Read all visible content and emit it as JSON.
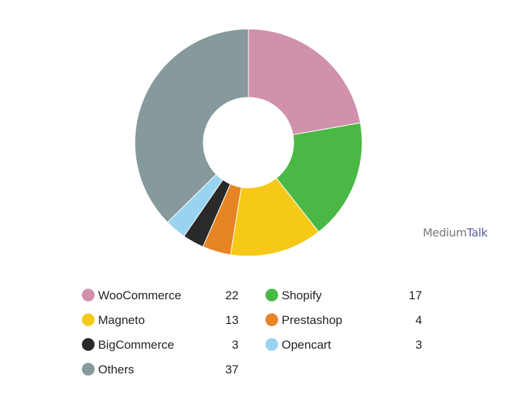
{
  "watermark": {
    "part1": "Medium",
    "part2": "Talk"
  },
  "chart_data": {
    "type": "pie",
    "variant": "donut",
    "legend_position": "bottom",
    "slices": [
      {
        "label": "WooCommerce",
        "value": 22,
        "color": "#d190ab"
      },
      {
        "label": "Shopify",
        "value": 17,
        "color": "#4ab845"
      },
      {
        "label": "Magneto",
        "value": 13,
        "color": "#f6c919"
      },
      {
        "label": "Prestashop",
        "value": 4,
        "color": "#e78424"
      },
      {
        "label": "BigCommerce",
        "value": 3,
        "color": "#2a2a2a"
      },
      {
        "label": "Opencart",
        "value": 3,
        "color": "#98d4ef"
      },
      {
        "label": "Others",
        "value": 37,
        "color": "#869a9c"
      }
    ]
  }
}
